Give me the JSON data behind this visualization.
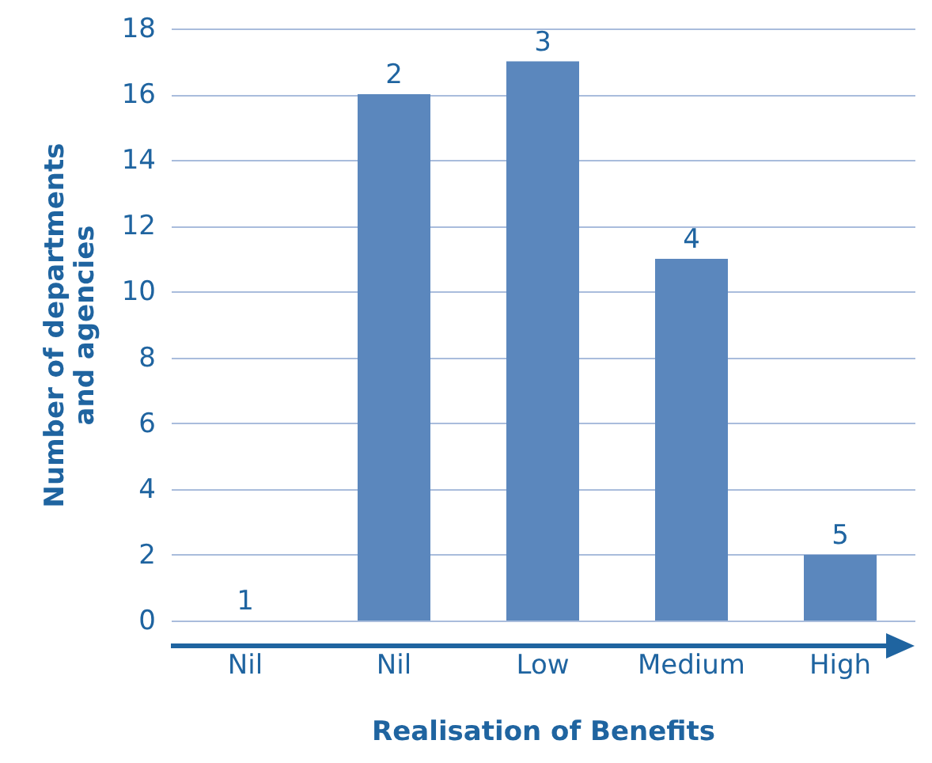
{
  "chart_data": {
    "type": "bar",
    "xlabel": "Realisation of Benefits",
    "ylabel": "Number of departments\nand agencies",
    "categories": [
      "Nil",
      "Nil",
      "Low",
      "Medium",
      "High"
    ],
    "values": [
      0,
      16,
      17,
      11,
      2
    ],
    "annotations": [
      "1",
      "2",
      "3",
      "4",
      "5"
    ],
    "color": "#5b87bd",
    "ylim": [
      0,
      18
    ],
    "yticks": [
      0,
      2,
      4,
      6,
      8,
      10,
      12,
      14,
      16,
      18
    ],
    "grid": "y"
  }
}
